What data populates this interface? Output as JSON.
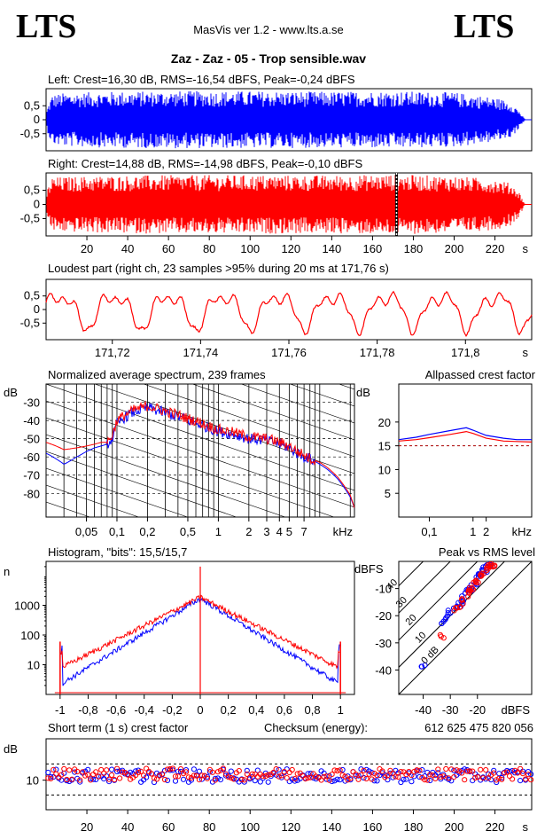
{
  "header": {
    "logo_left": "LTS",
    "logo_right": "LTS",
    "app_title": "MasVis ver 1.2 - www.lts.a.se",
    "file_title": "Zaz - Zaz - 05 - Trop sensible.wav"
  },
  "colors": {
    "left": "#0000ff",
    "right": "#ff0000",
    "ref_dash": "#aa0000"
  },
  "chart_data": [
    {
      "id": "left-waveform",
      "type": "area",
      "title": "Left: Crest=16,30 dB, RMS=-16,54 dBFS, Peak=-0,24 dBFS",
      "ylim": [
        -1,
        1
      ],
      "xlim": [
        0,
        238
      ],
      "yticks": [
        "0,5",
        "0",
        "-0,5"
      ],
      "yticks_v": [
        0.5,
        0,
        -0.5
      ],
      "envelope": {
        "t": [
          0,
          1,
          3,
          8,
          30,
          60,
          100,
          140,
          170,
          200,
          220,
          228,
          232,
          234,
          235,
          238
        ],
        "amp": [
          0.2,
          0.5,
          0.85,
          0.9,
          0.95,
          0.97,
          0.97,
          0.95,
          0.97,
          0.93,
          0.75,
          0.6,
          0.3,
          0.08,
          0,
          0
        ]
      }
    },
    {
      "id": "right-waveform",
      "type": "area",
      "title": "Right: Crest=14,88 dB, RMS=-14,98 dBFS, Peak=-0,10 dBFS",
      "ylim": [
        -1,
        1
      ],
      "xlim": [
        0,
        238
      ],
      "xlabel": "s",
      "yticks": [
        "0,5",
        "0",
        "-0,5"
      ],
      "yticks_v": [
        0.5,
        0,
        -0.5
      ],
      "xticks": [
        20,
        40,
        60,
        80,
        100,
        120,
        140,
        160,
        180,
        200,
        220
      ],
      "marker_time": 171.76,
      "envelope": {
        "t": [
          0,
          1,
          3,
          8,
          30,
          60,
          100,
          140,
          170,
          200,
          220,
          228,
          232,
          234,
          235,
          238
        ],
        "amp": [
          0.2,
          0.6,
          0.9,
          0.92,
          0.96,
          0.98,
          0.98,
          0.97,
          1.0,
          0.95,
          0.85,
          0.7,
          0.4,
          0.1,
          0,
          0
        ]
      }
    },
    {
      "id": "loudest-part",
      "type": "line",
      "title": "Loudest part (right ch, 23 samples >95% during 20 ms at 171,76 s)",
      "xlabel": "s",
      "xlim": [
        171.705,
        171.815
      ],
      "ylim": [
        -1,
        1
      ],
      "yticks": [
        "0,5",
        "0",
        "-0,5"
      ],
      "yticks_v": [
        0.5,
        0,
        -0.5
      ],
      "xticks": [
        "171,72",
        "171,74",
        "171,76",
        "171,78",
        "171,8"
      ],
      "xticks_v": [
        171.72,
        171.74,
        171.76,
        171.78,
        171.8
      ]
    },
    {
      "id": "spectrum",
      "type": "line",
      "title": "Normalized average spectrum, 239 frames",
      "ylabel": "dB",
      "xlabel": "kHz",
      "xscale": "log",
      "xlim": [
        0.02,
        22
      ],
      "ylim": [
        -93,
        -20
      ],
      "yticks": [
        -30,
        -40,
        -50,
        -60,
        -70,
        -80
      ],
      "xticks": [
        "0,05",
        "0,1",
        "0,2",
        "0,5",
        "1",
        "2",
        "3",
        "4",
        "5",
        "7"
      ],
      "xticks_v": [
        0.05,
        0.1,
        0.2,
        0.5,
        1,
        2,
        3,
        4,
        5,
        7
      ],
      "series": [
        {
          "freq": [
            0.02,
            0.03,
            0.04,
            0.05,
            0.06,
            0.07,
            0.08,
            0.09,
            0.1,
            0.12,
            0.15,
            0.2,
            0.3,
            0.5,
            0.8,
            1,
            1.5,
            2,
            3,
            4,
            5,
            6,
            7,
            8,
            10,
            12,
            15,
            20,
            22
          ],
          "db": [
            -58,
            -64,
            -60,
            -57,
            -55,
            -54,
            -53,
            -50,
            -42,
            -38,
            -35,
            -33,
            -36,
            -40,
            -44,
            -46,
            -48,
            -50,
            -51,
            -53,
            -55,
            -58,
            -60,
            -61,
            -64,
            -67,
            -72,
            -82,
            -88
          ]
        },
        {
          "freq": [
            0.02,
            0.03,
            0.04,
            0.05,
            0.06,
            0.07,
            0.08,
            0.09,
            0.1,
            0.12,
            0.15,
            0.2,
            0.3,
            0.5,
            0.8,
            1,
            1.5,
            2,
            3,
            4,
            5,
            6,
            7,
            8,
            10,
            12,
            15,
            20,
            22
          ],
          "db": [
            -52,
            -56,
            -55,
            -54,
            -53,
            -52,
            -52,
            -48,
            -40,
            -37,
            -34,
            -32,
            -35,
            -39,
            -43,
            -45,
            -47,
            -49,
            -50,
            -52,
            -54,
            -57,
            -59,
            -61,
            -63,
            -66,
            -71,
            -81,
            -88
          ]
        }
      ]
    },
    {
      "id": "allpassed-crest",
      "type": "line",
      "title": "Allpassed crest factor",
      "ylabel": "dB",
      "xlabel": "kHz",
      "xscale": "log",
      "xlim": [
        0.02,
        22
      ],
      "ylim": [
        0,
        28
      ],
      "yticks": [
        20,
        15,
        10,
        5
      ],
      "xticks": [
        "0,1",
        "1",
        "2",
        "kHz"
      ],
      "xticks_v": [
        0.1,
        1,
        2
      ],
      "ref_level": 15.0,
      "series": [
        {
          "freq": [
            0.02,
            0.05,
            0.1,
            0.3,
            0.7,
            1,
            2,
            5,
            10,
            22
          ],
          "db": [
            16.3,
            16.8,
            17.4,
            18.2,
            18.8,
            18.3,
            17.2,
            16.6,
            16.3,
            16.3
          ]
        },
        {
          "freq": [
            0.02,
            0.05,
            0.1,
            0.3,
            0.7,
            1,
            2,
            5,
            10,
            22
          ],
          "db": [
            16.0,
            16.3,
            16.7,
            17.4,
            18.0,
            17.6,
            16.6,
            16.0,
            15.9,
            15.8
          ]
        }
      ]
    },
    {
      "id": "histogram",
      "type": "line",
      "title": "Histogram, \"bits\": 15,5/15,7",
      "ylabel": "n",
      "yscale": "log",
      "xlim": [
        -1.1,
        1.1
      ],
      "ylim": [
        1,
        30000
      ],
      "yticks": [
        1000,
        100,
        10
      ],
      "xticks": [
        "-1",
        "-0,8",
        "-0,6",
        "-0,4",
        "-0,2",
        "0",
        "0,2",
        "0,4",
        "0,6",
        "0,8",
        "1"
      ],
      "xticks_v": [
        -1,
        -0.8,
        -0.6,
        -0.4,
        -0.2,
        0,
        0.2,
        0.4,
        0.6,
        0.8,
        1
      ]
    },
    {
      "id": "peak-vs-rms",
      "type": "scatter",
      "title": "Peak vs RMS level",
      "ylabel": "dBFS",
      "xlabel": "dBFS",
      "xlim": [
        -49,
        0
      ],
      "ylim": [
        -49,
        0
      ],
      "yticks": [
        -10,
        -20,
        -30,
        -40
      ],
      "xticks": [
        -40,
        -30,
        -20
      ],
      "crest_lines": [
        "40",
        "30",
        "20",
        "10",
        "0 dB"
      ],
      "crest_values": [
        40,
        30,
        20,
        10,
        0
      ],
      "series": [
        {
          "x": [
            -40,
            -33,
            -31,
            -30,
            -28,
            -27,
            -26,
            -25,
            -24,
            -23,
            -22,
            -21,
            -20,
            -19,
            -18,
            -17,
            -16,
            -15
          ],
          "y": [
            -38,
            -22,
            -21,
            -19,
            -17,
            -16,
            -15,
            -13,
            -11,
            -10,
            -9,
            -8,
            -6,
            -5,
            -4,
            -3,
            -2,
            -1
          ]
        },
        {
          "x": [
            -33,
            -28,
            -26,
            -25,
            -24,
            -23,
            -22,
            -21,
            -20,
            -19,
            -18,
            -17,
            -16,
            -15,
            -14
          ],
          "y": [
            -28,
            -18,
            -16,
            -14,
            -12,
            -11,
            -10,
            -8,
            -7,
            -6,
            -4,
            -3,
            -2,
            -1,
            -1
          ]
        }
      ]
    },
    {
      "id": "short-term-crest",
      "type": "scatter",
      "title": "Short term (1 s) crest factor",
      "ylabel": "dB",
      "xlabel": "s",
      "xlim": [
        0,
        238
      ],
      "ylim": [
        0,
        24
      ],
      "yticks": [
        10
      ],
      "xticks": [
        20,
        40,
        60,
        80,
        100,
        120,
        140,
        160,
        180,
        200,
        220
      ],
      "ref_levels": [
        5.0,
        15.5
      ],
      "checksum_label": "Checksum (energy):",
      "checksum_value": "612 625 475 820 056",
      "series": [
        {
          "typical": 11.5,
          "range": 4.5
        },
        {
          "typical": 12.0,
          "range": 4.0
        }
      ]
    }
  ]
}
